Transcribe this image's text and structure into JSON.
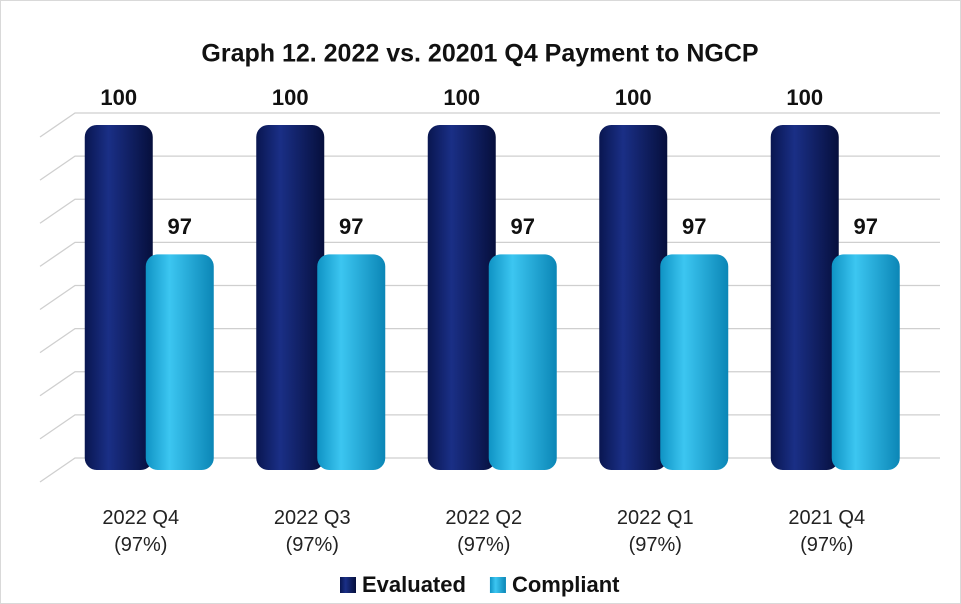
{
  "chart_data": {
    "type": "bar3d",
    "title": "Graph 12. 2022 vs. 20201 Q4 Payment to NGCP",
    "categories": [
      "2022 Q4\n(97%)",
      "2022 Q3\n(97%)",
      "2022 Q2\n(97%)",
      "2022 Q1\n(97%)",
      "2021 Q4\n(97%)"
    ],
    "series": [
      {
        "name": "Evaluated",
        "color": "#0d1f6b",
        "values": [
          100,
          100,
          100,
          100,
          100
        ]
      },
      {
        "name": "Compliant",
        "color": "#1bb1e3",
        "values": [
          97,
          97,
          97,
          97,
          97
        ]
      }
    ],
    "ylim": [
      92,
      100
    ],
    "yticks": [
      92,
      93,
      94,
      95,
      96,
      97,
      98,
      99,
      100
    ],
    "grid": true,
    "legend": "bottom"
  }
}
